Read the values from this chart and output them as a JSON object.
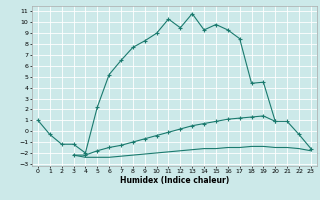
{
  "title": "",
  "xlabel": "Humidex (Indice chaleur)",
  "bg_color": "#cce9e9",
  "grid_color": "#ffffff",
  "line_color": "#1a7a6e",
  "xlim": [
    -0.5,
    23.5
  ],
  "ylim": [
    -3.2,
    11.5
  ],
  "xticks": [
    0,
    1,
    2,
    3,
    4,
    5,
    6,
    7,
    8,
    9,
    10,
    11,
    12,
    13,
    14,
    15,
    16,
    17,
    18,
    19,
    20,
    21,
    22,
    23
  ],
  "yticks": [
    -3,
    -2,
    -1,
    0,
    1,
    2,
    3,
    4,
    5,
    6,
    7,
    8,
    9,
    10,
    11
  ],
  "c1x": [
    0,
    1,
    2,
    3,
    4,
    5,
    6,
    7,
    8,
    9,
    10,
    11,
    12,
    13,
    14,
    15,
    16,
    17,
    18,
    19,
    20
  ],
  "c1y": [
    1.0,
    -0.3,
    -1.2,
    -1.2,
    -2.0,
    2.2,
    5.2,
    6.5,
    7.7,
    8.3,
    9.0,
    10.3,
    9.5,
    10.8,
    9.3,
    9.8,
    9.3,
    8.5,
    4.4,
    4.5,
    0.9
  ],
  "c2x": [
    3,
    4,
    5,
    6,
    7,
    8,
    9,
    10,
    11,
    12,
    13,
    14,
    15,
    16,
    17,
    18,
    19,
    20,
    21,
    22,
    23
  ],
  "c2y": [
    -2.2,
    -2.2,
    -1.8,
    -1.5,
    -1.3,
    -1.0,
    -0.7,
    -0.4,
    -0.1,
    0.2,
    0.5,
    0.7,
    0.9,
    1.1,
    1.2,
    1.3,
    1.4,
    0.9,
    0.9,
    -0.3,
    -1.6
  ],
  "c3x": [
    3,
    4,
    5,
    6,
    7,
    8,
    9,
    10,
    11,
    12,
    13,
    14,
    15,
    16,
    17,
    18,
    19,
    20,
    21,
    22,
    23
  ],
  "c3y": [
    -2.2,
    -2.4,
    -2.4,
    -2.4,
    -2.3,
    -2.2,
    -2.1,
    -2.0,
    -1.9,
    -1.8,
    -1.7,
    -1.6,
    -1.6,
    -1.5,
    -1.5,
    -1.4,
    -1.4,
    -1.5,
    -1.5,
    -1.6,
    -1.8
  ]
}
